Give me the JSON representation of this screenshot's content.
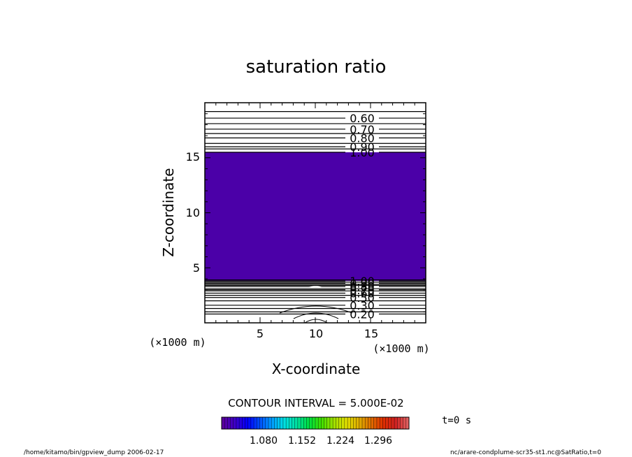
{
  "chart_data": {
    "type": "contour",
    "title": "saturation ratio",
    "xlabel": "X-coordinate",
    "ylabel": "Z-coordinate",
    "x_unit_label": "(×1000 m)",
    "y_unit_label": "(×1000 m)",
    "xlim": [
      0,
      20
    ],
    "ylim": [
      0,
      20
    ],
    "x_ticks": [
      5,
      10,
      15
    ],
    "x_tick_labels": [
      "5",
      "10",
      "15"
    ],
    "y_ticks": [
      5,
      10,
      15
    ],
    "y_tick_labels": [
      "5",
      "10",
      "15"
    ],
    "shaded_region": {
      "z_range": [
        3.8,
        15.5
      ],
      "color": "#4b00a8"
    },
    "upper_contours": [
      {
        "z": 15.5,
        "label": "1.00"
      },
      {
        "z": 16.0,
        "label": "0.90"
      },
      {
        "z": 16.8,
        "label": "0.80"
      },
      {
        "z": 17.6,
        "label": "0.70"
      },
      {
        "z": 18.6,
        "label": "0.60"
      }
    ],
    "upper_unlabeled_z": [
      15.8,
      16.3,
      17.2,
      18.1,
      19.2
    ],
    "lower_contours": [
      {
        "z": 3.8,
        "label": "1.00"
      },
      {
        "z": 3.6,
        "label": "0.90"
      },
      {
        "z": 3.3,
        "label": "0.80"
      },
      {
        "z": 3.0,
        "label": "0.70"
      },
      {
        "z": 2.7,
        "label": "0.60"
      },
      {
        "z": 2.3,
        "label": "0.50"
      },
      {
        "z": 1.6,
        "label": "0.30"
      },
      {
        "z": 0.8,
        "label": "0.20"
      }
    ],
    "lower_unlabeled_z": [
      3.9,
      3.7,
      3.5,
      3.4,
      3.1,
      2.9,
      2.5,
      2.0,
      1.3,
      1.0
    ],
    "contour_interval_label": "CONTOUR INTERVAL = 5.000E-02",
    "colorbar": {
      "colors": [
        "#5a00a0",
        "#3c00c8",
        "#0000ff",
        "#0050ff",
        "#00a0ff",
        "#00e0e0",
        "#00e0a0",
        "#00e040",
        "#40e000",
        "#a0e000",
        "#e0e000",
        "#e0b000",
        "#e07000",
        "#e03000",
        "#d02020",
        "#e06060"
      ],
      "tick_labels": [
        "1.080",
        "1.152",
        "1.224",
        "1.296"
      ]
    },
    "time_label": "t=0 s",
    "footer_left": "/home/kitamo/bin/gpview_dump  2006-02-17",
    "footer_right": "nc/arare-condplume-scr35-st1.nc@SatRatio,t=0"
  }
}
